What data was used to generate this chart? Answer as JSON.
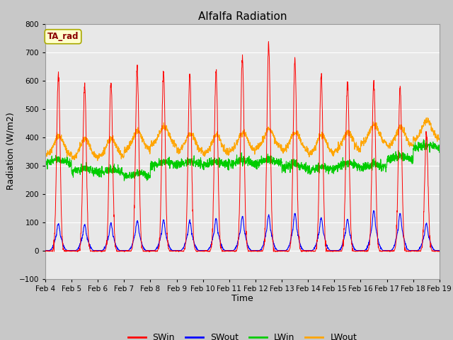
{
  "title": "Alfalfa Radiation",
  "xlabel": "Time",
  "ylabel": "Radiation (W/m2)",
  "annotation": "TA_rad",
  "ylim": [
    -100,
    800
  ],
  "yticks": [
    -100,
    0,
    100,
    200,
    300,
    400,
    500,
    600,
    700,
    800
  ],
  "colors": {
    "SWin": "#ff0000",
    "SWout": "#0000ff",
    "LWin": "#00cc00",
    "LWout": "#ffa500"
  },
  "xtick_labels": [
    "Feb 4",
    "Feb 5",
    "Feb 6",
    "Feb 7",
    "Feb 8",
    "Feb 9",
    "Feb 10",
    "Feb 11",
    "Feb 12",
    "Feb 13",
    "Feb 14",
    "Feb 15",
    "Feb 16",
    "Feb 17",
    "Feb 18",
    "Feb 19"
  ],
  "fig_bg_color": "#c8c8c8",
  "plot_bg_color": "#e8e8e8",
  "grid_color": "#ffffff",
  "n_days": 15,
  "peak_SWin": [
    620,
    585,
    600,
    640,
    635,
    625,
    630,
    685,
    730,
    675,
    620,
    600,
    600,
    575,
    410
  ],
  "peak_SWout": [
    95,
    90,
    95,
    105,
    108,
    105,
    110,
    120,
    125,
    130,
    115,
    110,
    140,
    130,
    95
  ],
  "base_LWin": [
    305,
    275,
    270,
    258,
    298,
    300,
    298,
    302,
    306,
    290,
    280,
    292,
    292,
    318,
    358
  ],
  "base_LWout": [
    338,
    328,
    332,
    355,
    372,
    348,
    342,
    352,
    362,
    352,
    342,
    353,
    378,
    368,
    392
  ]
}
